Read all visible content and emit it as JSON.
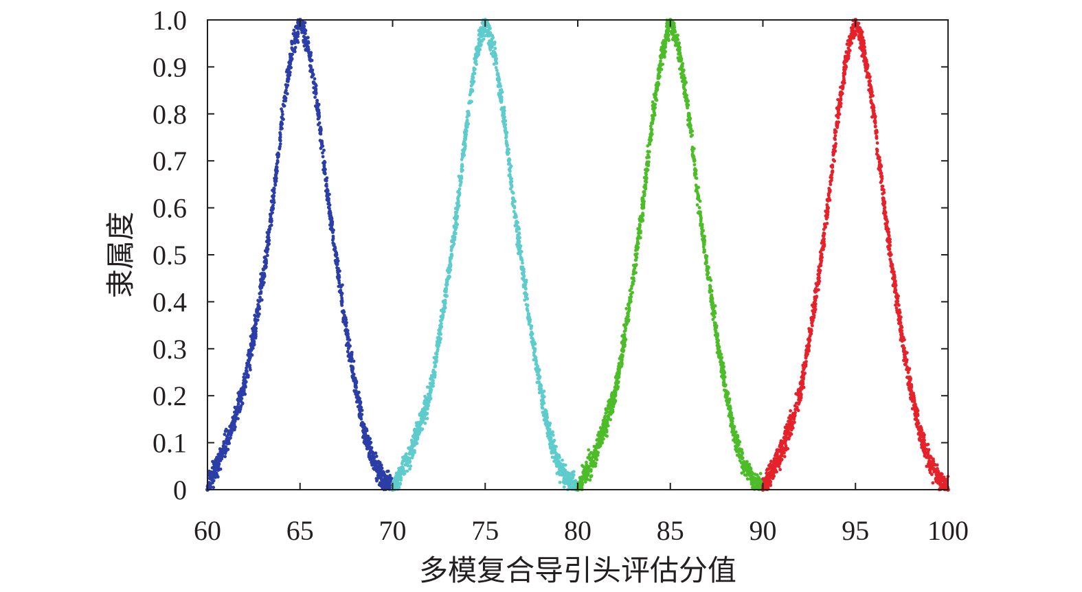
{
  "chart_data": {
    "type": "scatter",
    "title": "",
    "xlabel": "多模复合导引头评估分值",
    "ylabel": "隶属度",
    "xlim": [
      60,
      100
    ],
    "ylim": [
      0,
      1.0
    ],
    "xticks": [
      "60",
      "65",
      "70",
      "75",
      "80",
      "85",
      "90",
      "95",
      "100"
    ],
    "yticks": [
      "0",
      "0.1",
      "0.2",
      "0.3",
      "0.4",
      "0.5",
      "0.6",
      "0.7",
      "0.8",
      "0.9",
      "1.0"
    ],
    "grid": false,
    "legend": "none",
    "series": [
      {
        "color": "#2b3ea8",
        "peak": 65,
        "support": [
          60,
          70
        ],
        "points": [
          [
            60.0,
            0.0
          ],
          [
            60.5,
            0.05
          ],
          [
            61.0,
            0.1
          ],
          [
            61.5,
            0.15
          ],
          [
            62.0,
            0.22
          ],
          [
            62.5,
            0.33
          ],
          [
            63.0,
            0.45
          ],
          [
            63.5,
            0.6
          ],
          [
            64.0,
            0.78
          ],
          [
            64.5,
            0.92
          ],
          [
            65.0,
            1.0
          ],
          [
            65.5,
            0.93
          ],
          [
            66.0,
            0.8
          ],
          [
            66.5,
            0.62
          ],
          [
            67.0,
            0.48
          ],
          [
            67.5,
            0.34
          ],
          [
            68.0,
            0.22
          ],
          [
            68.5,
            0.12
          ],
          [
            69.0,
            0.06
          ],
          [
            69.5,
            0.02
          ],
          [
            70.0,
            0.0
          ]
        ]
      },
      {
        "color": "#5ecccc",
        "peak": 75,
        "support": [
          70,
          80
        ],
        "points": [
          [
            70.0,
            0.0
          ],
          [
            70.5,
            0.04
          ],
          [
            71.0,
            0.08
          ],
          [
            71.5,
            0.14
          ],
          [
            72.0,
            0.2
          ],
          [
            72.5,
            0.32
          ],
          [
            73.0,
            0.45
          ],
          [
            73.5,
            0.6
          ],
          [
            74.0,
            0.78
          ],
          [
            74.5,
            0.92
          ],
          [
            75.0,
            1.0
          ],
          [
            75.5,
            0.93
          ],
          [
            76.0,
            0.8
          ],
          [
            76.5,
            0.62
          ],
          [
            77.0,
            0.47
          ],
          [
            77.5,
            0.33
          ],
          [
            78.0,
            0.21
          ],
          [
            78.5,
            0.11
          ],
          [
            79.0,
            0.05
          ],
          [
            79.5,
            0.02
          ],
          [
            80.0,
            0.0
          ]
        ]
      },
      {
        "color": "#4cbd29",
        "peak": 85,
        "support": [
          80,
          90
        ],
        "points": [
          [
            80.0,
            0.0
          ],
          [
            80.5,
            0.04
          ],
          [
            81.0,
            0.08
          ],
          [
            81.5,
            0.14
          ],
          [
            82.0,
            0.2
          ],
          [
            82.5,
            0.32
          ],
          [
            83.0,
            0.45
          ],
          [
            83.5,
            0.6
          ],
          [
            84.0,
            0.78
          ],
          [
            84.5,
            0.92
          ],
          [
            85.0,
            1.0
          ],
          [
            85.5,
            0.93
          ],
          [
            86.0,
            0.8
          ],
          [
            86.5,
            0.62
          ],
          [
            87.0,
            0.47
          ],
          [
            87.5,
            0.33
          ],
          [
            88.0,
            0.21
          ],
          [
            88.5,
            0.11
          ],
          [
            89.0,
            0.05
          ],
          [
            89.5,
            0.02
          ],
          [
            90.0,
            0.0
          ]
        ]
      },
      {
        "color": "#e5222a",
        "peak": 95,
        "support": [
          90,
          100
        ],
        "points": [
          [
            90.0,
            0.0
          ],
          [
            90.5,
            0.04
          ],
          [
            91.0,
            0.08
          ],
          [
            91.5,
            0.14
          ],
          [
            92.0,
            0.2
          ],
          [
            92.5,
            0.32
          ],
          [
            93.0,
            0.45
          ],
          [
            93.5,
            0.6
          ],
          [
            94.0,
            0.78
          ],
          [
            94.5,
            0.92
          ],
          [
            95.0,
            1.0
          ],
          [
            95.5,
            0.93
          ],
          [
            96.0,
            0.8
          ],
          [
            96.5,
            0.62
          ],
          [
            97.0,
            0.47
          ],
          [
            97.5,
            0.33
          ],
          [
            98.0,
            0.21
          ],
          [
            98.5,
            0.12
          ],
          [
            99.0,
            0.06
          ],
          [
            99.5,
            0.02
          ],
          [
            100.0,
            0.0
          ]
        ]
      }
    ]
  }
}
